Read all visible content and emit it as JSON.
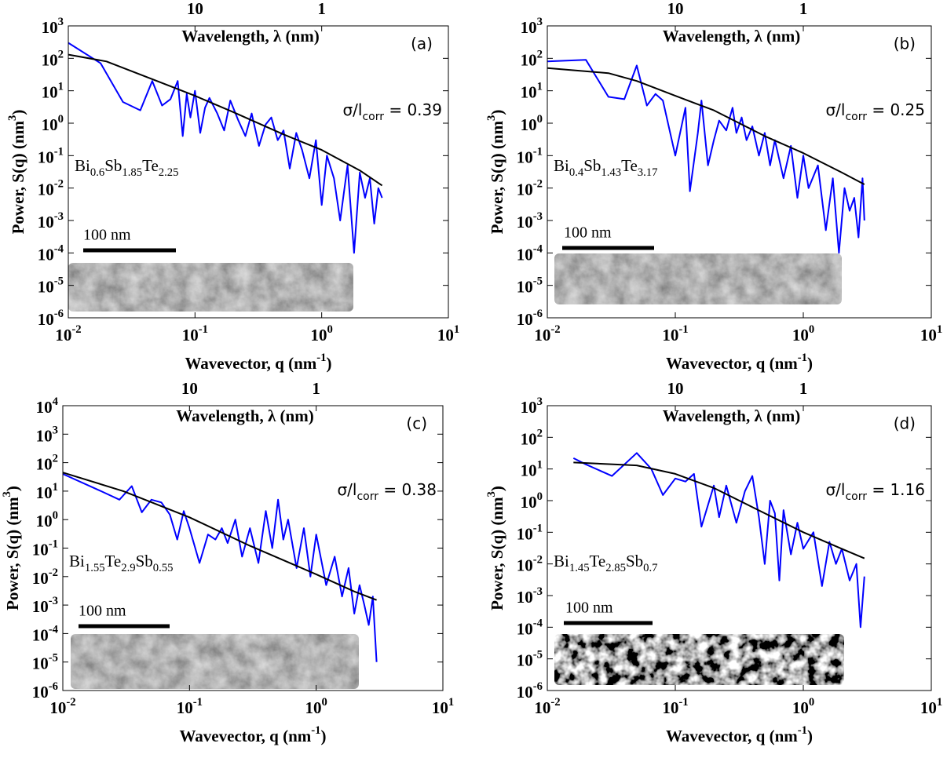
{
  "chart_data": [
    {
      "type": "line",
      "title": "(a)",
      "x2label": "Wavelength, λ (nm)",
      "xlabel": "Wavevector, q (nm^{-1})",
      "ylabel": "Power, S(q) (nm^{3})",
      "xscale": "log",
      "yscale": "log",
      "xlim": [
        0.01,
        10
      ],
      "ylim": [
        1e-06,
        1000
      ],
      "xticks": [
        {
          "value": 0.01,
          "label": "10^{-2}"
        },
        {
          "value": 0.1,
          "label": "10^{-1}"
        },
        {
          "value": 1,
          "label": "10^{0}"
        },
        {
          "value": 10,
          "label": "10^{1}"
        }
      ],
      "yticks": [
        {
          "value": 1e-06,
          "label": "10^{-6}"
        },
        {
          "value": 1e-05,
          "label": "10^{-5}"
        },
        {
          "value": 0.0001,
          "label": "10^{-4}"
        },
        {
          "value": 0.001,
          "label": "10^{-3}"
        },
        {
          "value": 0.01,
          "label": "10^{-2}"
        },
        {
          "value": 0.1,
          "label": "10^{-1}"
        },
        {
          "value": 1,
          "label": "10^{0}"
        },
        {
          "value": 10,
          "label": "10^{1}"
        },
        {
          "value": 100,
          "label": "10^{2}"
        },
        {
          "value": 1000,
          "label": "10^{3}"
        }
      ],
      "x2lim": [
        100,
        0.1
      ],
      "x2ticks": [
        10,
        1
      ],
      "annotation": "σ/l_{corr} = 0.39",
      "formula": "Bi_{0.6}Sb_{1.85}Te_{2.25}",
      "scale_bar_label": "100 nm",
      "series": [
        {
          "color": "#0000ff",
          "x": [
            0.01,
            0.018,
            0.027,
            0.037,
            0.046,
            0.055,
            0.064,
            0.073,
            0.08,
            0.086,
            0.092,
            0.1,
            0.11,
            0.12,
            0.13,
            0.15,
            0.17,
            0.19,
            0.22,
            0.25,
            0.28,
            0.32,
            0.36,
            0.4,
            0.45,
            0.5,
            0.56,
            0.63,
            0.7,
            0.8,
            0.9,
            1.0,
            1.1,
            1.25,
            1.4,
            1.6,
            1.8,
            2.0,
            2.2,
            2.4,
            2.6,
            2.8,
            3.0
          ],
          "values": [
            300,
            70,
            4.5,
            2.5,
            20,
            3.5,
            5.5,
            20,
            0.4,
            8,
            1.5,
            10,
            0.5,
            3,
            6,
            2,
            0.6,
            5,
            1.2,
            0.4,
            2,
            0.2,
            0.9,
            1.5,
            0.3,
            0.6,
            0.04,
            0.5,
            0.15,
            0.02,
            0.3,
            0.003,
            0.1,
            0.02,
            0.001,
            0.05,
            0.0001,
            0.03,
            0.005,
            0.02,
            0.0008,
            0.01,
            0.005
          ]
        },
        {
          "color": "#000000",
          "x": [
            0.01,
            0.02,
            0.05,
            0.1,
            0.2,
            0.5,
            1,
            2,
            3
          ],
          "values": [
            130,
            80,
            20,
            7,
            2.2,
            0.45,
            0.15,
            0.035,
            0.012
          ]
        }
      ]
    },
    {
      "type": "line",
      "title": "(b)",
      "x2label": "Wavelength, λ (nm)",
      "xlabel": "Wavevector, q (nm^{-1})",
      "ylabel": "Power, S(q) (nm^{3})",
      "xscale": "log",
      "yscale": "log",
      "xlim": [
        0.01,
        10
      ],
      "ylim": [
        1e-06,
        1000
      ],
      "xticks": [
        {
          "value": 0.01,
          "label": "10^{-2}"
        },
        {
          "value": 0.1,
          "label": "10^{-1}"
        },
        {
          "value": 1,
          "label": "10^{0}"
        },
        {
          "value": 10,
          "label": "10^{1}"
        }
      ],
      "yticks": [
        {
          "value": 1e-06,
          "label": "10^{-6}"
        },
        {
          "value": 1e-05,
          "label": "10^{-5}"
        },
        {
          "value": 0.0001,
          "label": "10^{-4}"
        },
        {
          "value": 0.001,
          "label": "10^{-3}"
        },
        {
          "value": 0.01,
          "label": "10^{-2}"
        },
        {
          "value": 0.1,
          "label": "10^{-1}"
        },
        {
          "value": 1,
          "label": "10^{0}"
        },
        {
          "value": 10,
          "label": "10^{1}"
        },
        {
          "value": 100,
          "label": "10^{2}"
        },
        {
          "value": 1000,
          "label": "10^{3}"
        }
      ],
      "x2lim": [
        100,
        0.1
      ],
      "x2ticks": [
        10,
        1
      ],
      "annotation": "σ/l_{corr} = 0.25",
      "formula": "Bi_{0.4}Sb_{1.43}Te_{3.17}",
      "scale_bar_label": "100 nm",
      "series": [
        {
          "color": "#0000ff",
          "x": [
            0.01,
            0.02,
            0.03,
            0.04,
            0.05,
            0.06,
            0.07,
            0.08,
            0.1,
            0.12,
            0.13,
            0.15,
            0.16,
            0.18,
            0.2,
            0.22,
            0.25,
            0.28,
            0.3,
            0.33,
            0.36,
            0.4,
            0.45,
            0.5,
            0.55,
            0.6,
            0.7,
            0.8,
            0.9,
            1.0,
            1.1,
            1.3,
            1.5,
            1.7,
            1.9,
            2.1,
            2.3,
            2.5,
            2.7,
            2.9,
            3.0
          ],
          "values": [
            80,
            90,
            6.5,
            5.5,
            60,
            3.5,
            8,
            5,
            0.1,
            3,
            0.008,
            0.5,
            5,
            0.05,
            0.3,
            1.2,
            0.6,
            3,
            0.5,
            1.5,
            0.3,
            0.8,
            0.1,
            0.5,
            0.05,
            0.3,
            0.02,
            0.2,
            0.005,
            0.1,
            0.01,
            0.05,
            0.0005,
            0.02,
            0.0001,
            0.01,
            0.002,
            0.005,
            0.0003,
            0.02,
            0.001
          ]
        },
        {
          "color": "#000000",
          "x": [
            0.01,
            0.03,
            0.05,
            0.1,
            0.2,
            0.5,
            1,
            2,
            3
          ],
          "values": [
            50,
            35,
            20,
            7,
            2.5,
            0.4,
            0.12,
            0.03,
            0.013
          ]
        }
      ]
    },
    {
      "type": "line",
      "title": "(c)",
      "x2label": "Wavelength, λ (nm)",
      "xlabel": "Wavevector, q (nm^{-1})",
      "ylabel": "Power, S(q) (nm^{3})",
      "xscale": "log",
      "yscale": "log",
      "xlim": [
        0.01,
        10
      ],
      "ylim": [
        1e-06,
        10000
      ],
      "xticks": [
        {
          "value": 0.01,
          "label": "10^{-2}"
        },
        {
          "value": 0.1,
          "label": "10^{-1}"
        },
        {
          "value": 1,
          "label": "10^{0}"
        },
        {
          "value": 10,
          "label": "10^{1}"
        }
      ],
      "yticks": [
        {
          "value": 1e-06,
          "label": "10^{-6}"
        },
        {
          "value": 1e-05,
          "label": "10^{-5}"
        },
        {
          "value": 0.0001,
          "label": "10^{-4}"
        },
        {
          "value": 0.001,
          "label": "10^{-3}"
        },
        {
          "value": 0.01,
          "label": "10^{-2}"
        },
        {
          "value": 0.1,
          "label": "10^{-1}"
        },
        {
          "value": 1,
          "label": "10^{0}"
        },
        {
          "value": 10,
          "label": "10^{1}"
        },
        {
          "value": 100,
          "label": "10^{2}"
        },
        {
          "value": 1000,
          "label": "10^{3}"
        },
        {
          "value": 10000,
          "label": "10^{4}"
        }
      ],
      "x2lim": [
        100,
        0.1
      ],
      "x2ticks": [
        10,
        1
      ],
      "annotation": "σ/l_{corr} = 0.38",
      "formula": "Bi_{1.55}Te_{2.9}Sb_{0.55}",
      "scale_bar_label": "100 nm",
      "series": [
        {
          "color": "#0000ff",
          "x": [
            0.01,
            0.02,
            0.028,
            0.035,
            0.042,
            0.05,
            0.06,
            0.07,
            0.08,
            0.09,
            0.1,
            0.12,
            0.14,
            0.16,
            0.18,
            0.2,
            0.23,
            0.26,
            0.3,
            0.35,
            0.4,
            0.45,
            0.5,
            0.55,
            0.6,
            0.7,
            0.8,
            0.9,
            1.0,
            1.2,
            1.4,
            1.6,
            1.8,
            2.0,
            2.2,
            2.4,
            2.6,
            2.8,
            3.0
          ],
          "values": [
            40,
            10,
            5,
            15,
            1.8,
            5,
            4,
            1.5,
            0.2,
            2,
            0.5,
            0.03,
            0.3,
            0.2,
            0.5,
            0.15,
            1,
            0.05,
            0.5,
            0.03,
            2,
            0.1,
            5,
            0.2,
            1,
            0.02,
            0.5,
            0.01,
            0.3,
            0.005,
            0.05,
            0.002,
            0.02,
            0.0005,
            0.005,
            0.001,
            0.0002,
            0.002,
            1e-05
          ]
        },
        {
          "color": "#000000",
          "x": [
            0.01,
            0.03,
            0.1,
            0.3,
            1,
            2,
            3
          ],
          "values": [
            45,
            10,
            1.2,
            0.12,
            0.012,
            0.003,
            0.0015
          ]
        }
      ]
    },
    {
      "type": "line",
      "title": "(d)",
      "x2label": "Wavelength, λ (nm)",
      "xlabel": "Wavevector, q (nm^{-1})",
      "ylabel": "Power, S(q) (nm^{3})",
      "xscale": "log",
      "yscale": "log",
      "xlim": [
        0.01,
        10
      ],
      "ylim": [
        1e-06,
        1000
      ],
      "xticks": [
        {
          "value": 0.01,
          "label": "10^{-2}"
        },
        {
          "value": 0.1,
          "label": "10^{-1}"
        },
        {
          "value": 1,
          "label": "10^{0}"
        },
        {
          "value": 10,
          "label": "10^{1}"
        }
      ],
      "yticks": [
        {
          "value": 1e-06,
          "label": "10^{-6}"
        },
        {
          "value": 1e-05,
          "label": "10^{-5}"
        },
        {
          "value": 0.0001,
          "label": "10^{-4}"
        },
        {
          "value": 0.001,
          "label": "10^{-3}"
        },
        {
          "value": 0.01,
          "label": "10^{-2}"
        },
        {
          "value": 0.1,
          "label": "10^{-1}"
        },
        {
          "value": 1,
          "label": "10^{0}"
        },
        {
          "value": 10,
          "label": "10^{1}"
        },
        {
          "value": 100,
          "label": "10^{2}"
        },
        {
          "value": 1000,
          "label": "10^{3}"
        }
      ],
      "x2lim": [
        100,
        0.1
      ],
      "x2ticks": [
        10,
        1
      ],
      "annotation": "σ/l_{corr} = 1.16",
      "formula": "Bi_{1.45}Te_{2.85}Sb_{0.7}",
      "scale_bar_label": "100 nm",
      "series": [
        {
          "color": "#0000ff",
          "x": [
            0.016,
            0.02,
            0.032,
            0.05,
            0.065,
            0.08,
            0.1,
            0.12,
            0.14,
            0.16,
            0.2,
            0.22,
            0.25,
            0.3,
            0.35,
            0.4,
            0.45,
            0.5,
            0.55,
            0.6,
            0.65,
            0.7,
            0.8,
            0.9,
            1.0,
            1.2,
            1.4,
            1.6,
            1.8,
            2.0,
            2.3,
            2.6,
            2.8,
            3.0
          ],
          "values": [
            22,
            14,
            6,
            32,
            10,
            1.5,
            5,
            4,
            7,
            0.15,
            3,
            0.3,
            3,
            0.2,
            2,
            6,
            0.3,
            0.01,
            1,
            0.4,
            0.003,
            0.5,
            0.02,
            0.2,
            0.03,
            0.1,
            0.002,
            0.05,
            0.01,
            0.03,
            0.003,
            0.01,
            0.0001,
            0.004
          ]
        },
        {
          "color": "#000000",
          "x": [
            0.016,
            0.05,
            0.1,
            0.2,
            0.5,
            1,
            2,
            3
          ],
          "values": [
            16,
            13,
            7,
            2.5,
            0.4,
            0.1,
            0.03,
            0.015
          ]
        }
      ]
    }
  ]
}
